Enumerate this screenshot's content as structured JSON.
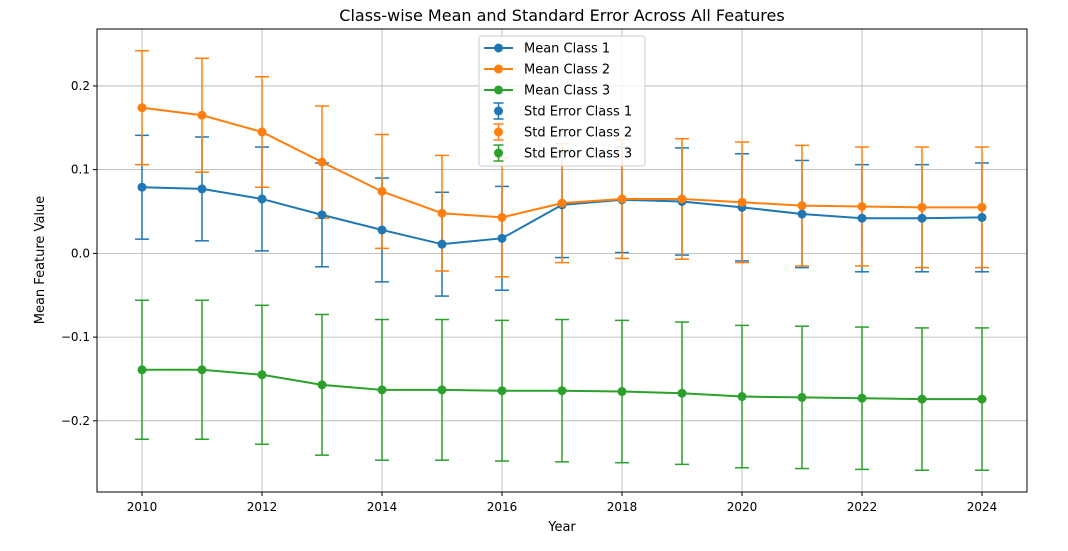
{
  "chart_data": {
    "type": "line",
    "title": "Class-wise Mean and Standard Error Across All Features",
    "xlabel": "Year",
    "ylabel": "Mean Feature Value",
    "xlim": [
      2009.25,
      2024.75
    ],
    "ylim": [
      -0.285,
      0.268
    ],
    "xticks": [
      2010,
      2012,
      2014,
      2016,
      2018,
      2020,
      2022,
      2024
    ],
    "xtick_labels": [
      "2010",
      "2012",
      "2014",
      "2016",
      "2018",
      "2020",
      "2022",
      "2024"
    ],
    "yticks": [
      -0.2,
      -0.1,
      0.0,
      0.1,
      0.2
    ],
    "ytick_labels": [
      "−0.2",
      "−0.1",
      "0.0",
      "0.1",
      "0.2"
    ],
    "grid": true,
    "legend_position": "upper center",
    "x": [
      2010,
      2011,
      2012,
      2013,
      2014,
      2015,
      2016,
      2017,
      2018,
      2019,
      2020,
      2021,
      2022,
      2023,
      2024
    ],
    "series": [
      {
        "name": "Mean Class 1",
        "error_name": "Std Error Class 1",
        "color": "#1f77b4",
        "values": [
          0.079,
          0.077,
          0.065,
          0.046,
          0.028,
          0.011,
          0.018,
          0.058,
          0.064,
          0.062,
          0.055,
          0.047,
          0.042,
          0.042,
          0.043
        ],
        "errors": [
          0.062,
          0.062,
          0.062,
          0.062,
          0.062,
          0.062,
          0.062,
          0.063,
          0.063,
          0.064,
          0.064,
          0.064,
          0.064,
          0.064,
          0.065
        ]
      },
      {
        "name": "Mean Class 2",
        "error_name": "Std Error Class 2",
        "color": "#ff7f0e",
        "values": [
          0.174,
          0.165,
          0.145,
          0.109,
          0.074,
          0.048,
          0.043,
          0.06,
          0.065,
          0.065,
          0.061,
          0.057,
          0.056,
          0.055,
          0.055
        ],
        "errors": [
          0.068,
          0.068,
          0.066,
          0.067,
          0.068,
          0.069,
          0.071,
          0.071,
          0.071,
          0.072,
          0.072,
          0.072,
          0.071,
          0.072,
          0.072
        ]
      },
      {
        "name": "Mean Class 3",
        "error_name": "Std Error Class 3",
        "color": "#2ca02c",
        "values": [
          -0.139,
          -0.139,
          -0.145,
          -0.157,
          -0.163,
          -0.163,
          -0.164,
          -0.164,
          -0.165,
          -0.167,
          -0.171,
          -0.172,
          -0.173,
          -0.174,
          -0.174
        ],
        "errors": [
          0.083,
          0.083,
          0.083,
          0.084,
          0.084,
          0.084,
          0.084,
          0.085,
          0.085,
          0.085,
          0.085,
          0.085,
          0.085,
          0.085,
          0.085
        ]
      }
    ]
  }
}
